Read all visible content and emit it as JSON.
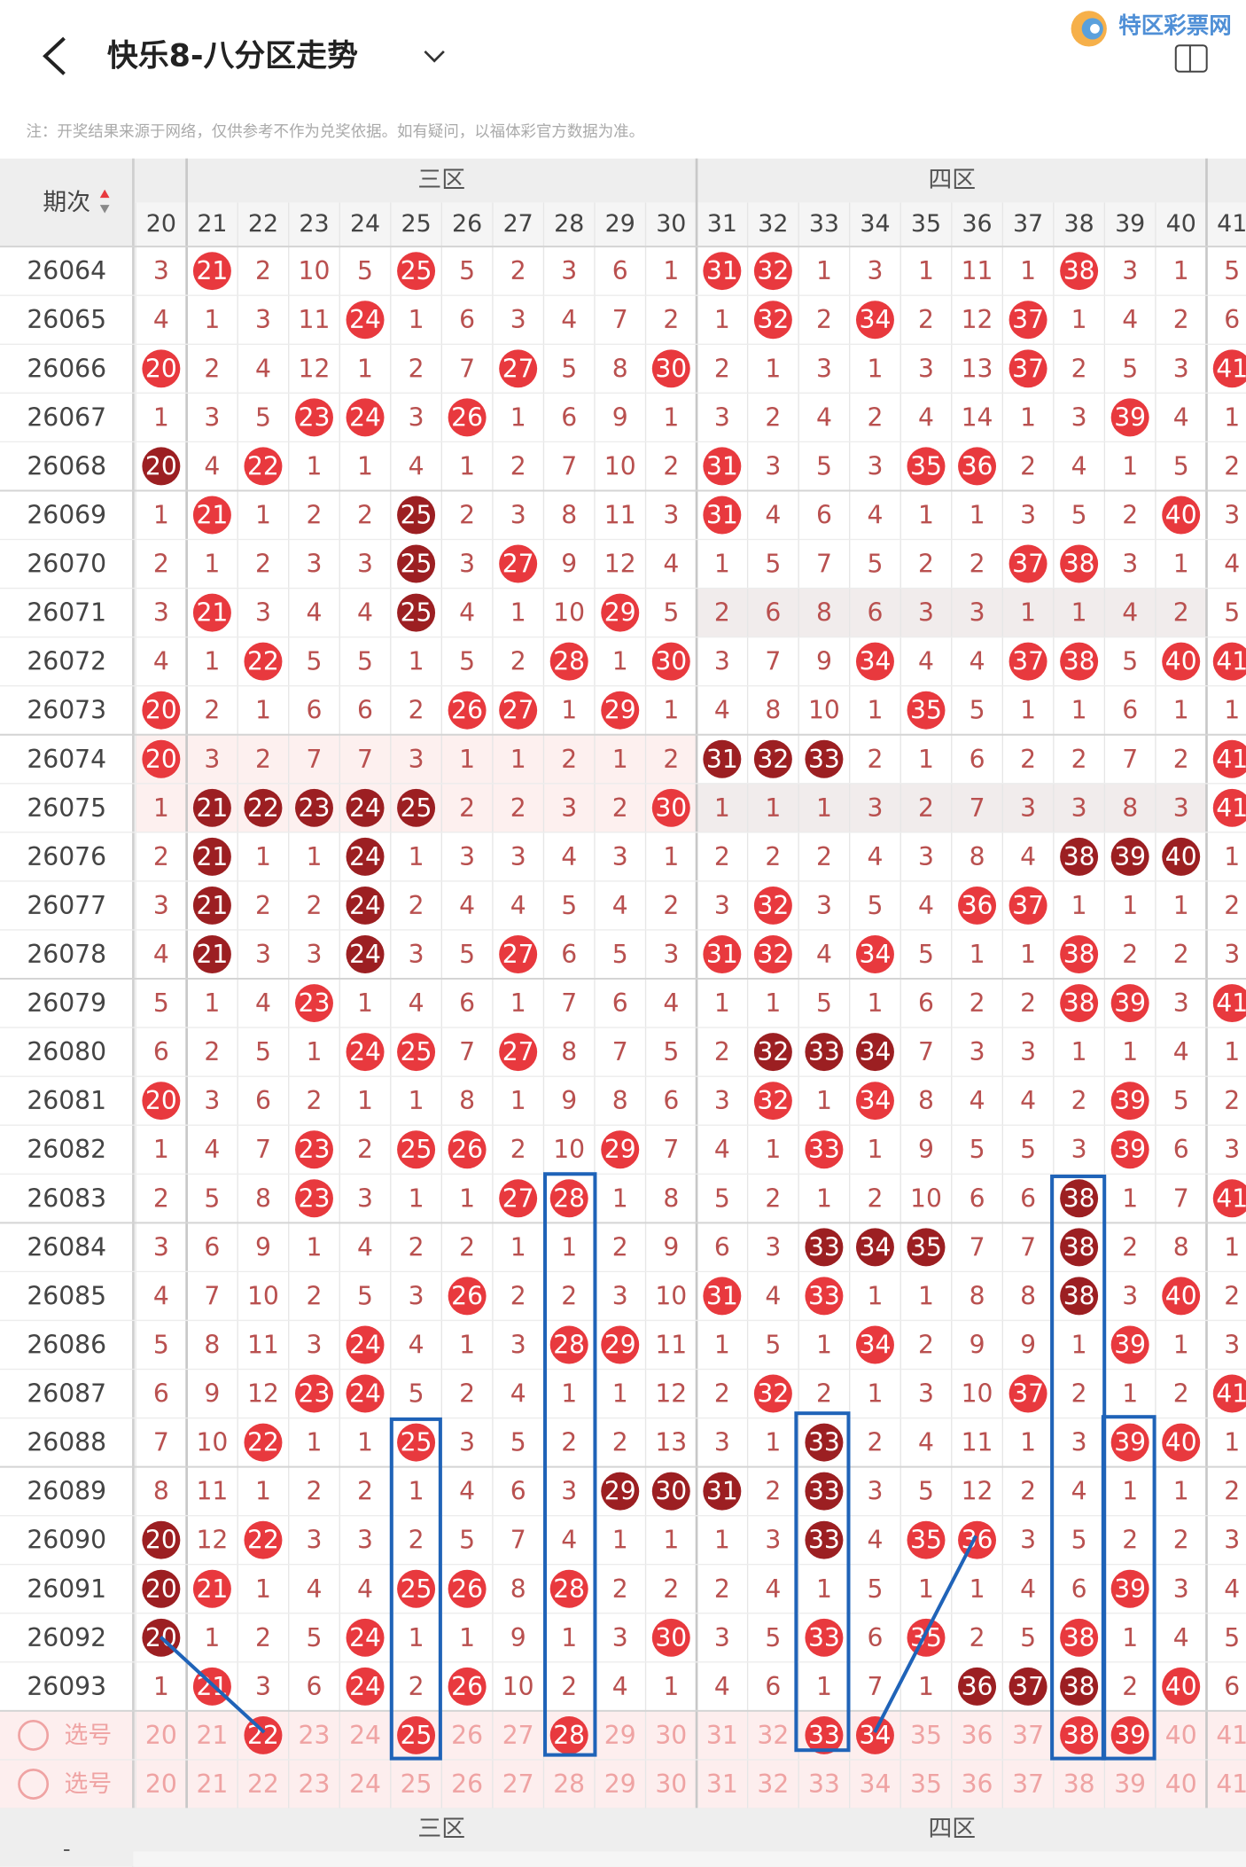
{
  "header": {
    "title": "快乐8-八分区走势",
    "logo": "特区彩票网"
  },
  "notice": "注：开奖结果来源于网络，仅供参考不作为兑奖依据。如有疑问，以福体彩官方数据为准。",
  "colors": {
    "hit": "#e8393e",
    "dark": "#9c1f22",
    "miss": "#b9504f",
    "select_text": "#efa3a3"
  },
  "table": {
    "period_header": "期次",
    "zones": [
      "三区",
      "四区"
    ],
    "columns": [
      20,
      21,
      22,
      23,
      24,
      25,
      26,
      27,
      28,
      29,
      30,
      31,
      32,
      33,
      34,
      35,
      36,
      37,
      38,
      39,
      40,
      41
    ],
    "rows": [
      {
        "period": "26064",
        "cells": [
          3,
          21,
          2,
          10,
          5,
          25,
          5,
          2,
          3,
          6,
          1,
          31,
          32,
          1,
          3,
          1,
          11,
          1,
          38,
          3,
          1,
          5
        ],
        "dark": []
      },
      {
        "period": "26065",
        "cells": [
          4,
          1,
          3,
          11,
          24,
          1,
          6,
          3,
          4,
          7,
          2,
          1,
          32,
          2,
          34,
          2,
          12,
          37,
          1,
          4,
          2,
          6
        ],
        "dark": []
      },
      {
        "period": "26066",
        "cells": [
          20,
          2,
          4,
          12,
          1,
          2,
          7,
          27,
          5,
          8,
          30,
          2,
          1,
          3,
          1,
          3,
          13,
          37,
          2,
          5,
          3,
          41
        ],
        "dark": []
      },
      {
        "period": "26067",
        "cells": [
          1,
          3,
          5,
          23,
          24,
          3,
          26,
          1,
          6,
          9,
          1,
          3,
          2,
          4,
          2,
          4,
          14,
          1,
          3,
          39,
          4,
          1
        ],
        "dark": []
      },
      {
        "period": "26068",
        "cells": [
          20,
          4,
          22,
          1,
          1,
          4,
          1,
          2,
          7,
          10,
          2,
          31,
          3,
          5,
          3,
          35,
          36,
          2,
          4,
          1,
          5,
          2
        ],
        "dark": [
          20
        ]
      },
      {
        "period": "26069",
        "cells": [
          1,
          21,
          1,
          2,
          2,
          25,
          2,
          3,
          8,
          11,
          3,
          31,
          4,
          6,
          4,
          1,
          1,
          3,
          5,
          2,
          40,
          3
        ],
        "dark": [
          25
        ]
      },
      {
        "period": "26070",
        "cells": [
          2,
          1,
          2,
          3,
          3,
          25,
          3,
          27,
          9,
          12,
          4,
          1,
          5,
          7,
          5,
          2,
          2,
          37,
          38,
          3,
          1,
          4
        ],
        "dark": [
          25
        ]
      },
      {
        "period": "26071",
        "cells": [
          3,
          21,
          3,
          4,
          4,
          25,
          4,
          1,
          10,
          29,
          5,
          2,
          6,
          8,
          6,
          3,
          3,
          1,
          1,
          4,
          2,
          5
        ],
        "dark": [
          25
        ]
      },
      {
        "period": "26072",
        "cells": [
          4,
          1,
          22,
          5,
          5,
          1,
          5,
          2,
          28,
          1,
          30,
          3,
          7,
          9,
          34,
          4,
          4,
          37,
          38,
          5,
          40,
          41
        ],
        "dark": []
      },
      {
        "period": "26073",
        "cells": [
          20,
          2,
          1,
          6,
          6,
          2,
          26,
          27,
          1,
          29,
          1,
          4,
          8,
          10,
          1,
          35,
          5,
          1,
          1,
          6,
          1,
          1
        ],
        "dark": []
      },
      {
        "period": "26074",
        "cells": [
          20,
          3,
          2,
          7,
          7,
          3,
          1,
          1,
          2,
          1,
          2,
          31,
          32,
          33,
          2,
          1,
          6,
          2,
          2,
          7,
          2,
          41
        ],
        "dark": [
          31,
          32,
          33
        ]
      },
      {
        "period": "26075",
        "cells": [
          1,
          21,
          22,
          23,
          24,
          25,
          2,
          2,
          3,
          2,
          30,
          1,
          1,
          1,
          3,
          2,
          7,
          3,
          3,
          8,
          3,
          41
        ],
        "dark": [
          21,
          22,
          23,
          24,
          25
        ]
      },
      {
        "period": "26076",
        "cells": [
          2,
          21,
          1,
          1,
          24,
          1,
          3,
          3,
          4,
          3,
          1,
          2,
          2,
          2,
          4,
          3,
          8,
          4,
          38,
          39,
          40,
          1
        ],
        "dark": [
          21,
          24,
          38,
          39,
          40
        ]
      },
      {
        "period": "26077",
        "cells": [
          3,
          21,
          2,
          2,
          24,
          2,
          4,
          4,
          5,
          4,
          2,
          3,
          32,
          3,
          5,
          4,
          36,
          37,
          1,
          1,
          1,
          2
        ],
        "dark": [
          21,
          24
        ]
      },
      {
        "period": "26078",
        "cells": [
          4,
          21,
          3,
          3,
          24,
          3,
          5,
          27,
          6,
          5,
          3,
          31,
          32,
          4,
          34,
          5,
          1,
          1,
          38,
          2,
          2,
          3
        ],
        "dark": [
          21,
          24
        ]
      },
      {
        "period": "26079",
        "cells": [
          5,
          1,
          4,
          23,
          1,
          4,
          6,
          1,
          7,
          6,
          4,
          1,
          1,
          5,
          1,
          6,
          2,
          2,
          38,
          39,
          3,
          41
        ],
        "dark": []
      },
      {
        "period": "26080",
        "cells": [
          6,
          2,
          5,
          1,
          24,
          25,
          7,
          27,
          8,
          7,
          5,
          2,
          32,
          33,
          34,
          7,
          3,
          3,
          1,
          1,
          4,
          1
        ],
        "dark": [
          32,
          33,
          34
        ]
      },
      {
        "period": "26081",
        "cells": [
          20,
          3,
          6,
          2,
          1,
          1,
          8,
          1,
          9,
          8,
          6,
          3,
          32,
          1,
          34,
          8,
          4,
          4,
          2,
          39,
          5,
          2
        ],
        "dark": []
      },
      {
        "period": "26082",
        "cells": [
          1,
          4,
          7,
          23,
          2,
          25,
          26,
          2,
          10,
          29,
          7,
          4,
          1,
          33,
          1,
          9,
          5,
          5,
          3,
          39,
          6,
          3
        ],
        "dark": []
      },
      {
        "period": "26083",
        "cells": [
          2,
          5,
          8,
          23,
          3,
          1,
          1,
          27,
          28,
          1,
          8,
          5,
          2,
          1,
          2,
          10,
          6,
          6,
          38,
          1,
          7,
          41
        ],
        "dark": [
          38
        ]
      },
      {
        "period": "26084",
        "cells": [
          3,
          6,
          9,
          1,
          4,
          2,
          2,
          1,
          1,
          2,
          9,
          6,
          3,
          33,
          34,
          35,
          7,
          7,
          38,
          2,
          8,
          1
        ],
        "dark": [
          33,
          34,
          35,
          38
        ]
      },
      {
        "period": "26085",
        "cells": [
          4,
          7,
          10,
          2,
          5,
          3,
          26,
          2,
          2,
          3,
          10,
          31,
          4,
          33,
          1,
          1,
          8,
          8,
          38,
          3,
          40,
          2
        ],
        "dark": [
          38
        ]
      },
      {
        "period": "26086",
        "cells": [
          5,
          8,
          11,
          3,
          24,
          4,
          1,
          3,
          28,
          29,
          11,
          1,
          5,
          1,
          34,
          2,
          9,
          9,
          1,
          39,
          1,
          3
        ],
        "dark": []
      },
      {
        "period": "26087",
        "cells": [
          6,
          9,
          12,
          23,
          24,
          5,
          2,
          4,
          1,
          1,
          12,
          2,
          32,
          2,
          1,
          3,
          10,
          37,
          2,
          1,
          2,
          41
        ],
        "dark": []
      },
      {
        "period": "26088",
        "cells": [
          7,
          10,
          22,
          1,
          1,
          25,
          3,
          5,
          2,
          2,
          13,
          3,
          1,
          33,
          2,
          4,
          11,
          1,
          3,
          39,
          40,
          1
        ],
        "dark": [
          33
        ]
      },
      {
        "period": "26089",
        "cells": [
          8,
          11,
          1,
          2,
          2,
          1,
          4,
          6,
          3,
          29,
          30,
          31,
          2,
          33,
          3,
          5,
          12,
          2,
          4,
          1,
          1,
          2
        ],
        "dark": [
          29,
          30,
          31,
          33
        ]
      },
      {
        "period": "26090",
        "cells": [
          20,
          12,
          22,
          3,
          3,
          2,
          5,
          7,
          4,
          1,
          1,
          1,
          3,
          33,
          4,
          35,
          36,
          3,
          5,
          2,
          2,
          3
        ],
        "dark": [
          20,
          33
        ]
      },
      {
        "period": "26091",
        "cells": [
          20,
          21,
          1,
          4,
          4,
          25,
          26,
          8,
          28,
          2,
          2,
          2,
          4,
          1,
          5,
          1,
          1,
          4,
          6,
          39,
          3,
          4
        ],
        "dark": [
          20
        ]
      },
      {
        "period": "26092",
        "cells": [
          20,
          1,
          2,
          5,
          24,
          1,
          1,
          9,
          1,
          3,
          30,
          3,
          5,
          33,
          6,
          35,
          2,
          5,
          38,
          1,
          4,
          5
        ],
        "dark": [
          20
        ]
      },
      {
        "period": "26093",
        "cells": [
          1,
          21,
          3,
          6,
          24,
          2,
          26,
          10,
          2,
          4,
          1,
          4,
          6,
          1,
          7,
          1,
          36,
          37,
          38,
          2,
          40,
          6
        ],
        "dark": [
          36,
          37,
          38
        ]
      }
    ],
    "select_rows": [
      {
        "label": "选号",
        "cells": [
          20,
          21,
          22,
          23,
          24,
          25,
          26,
          27,
          28,
          29,
          30,
          31,
          32,
          33,
          34,
          35,
          36,
          37,
          38,
          39,
          40,
          41
        ],
        "selected": [
          22,
          25,
          28,
          33,
          34,
          38,
          39
        ]
      },
      {
        "label": "选号",
        "cells": [
          20,
          21,
          22,
          23,
          24,
          25,
          26,
          27,
          28,
          29,
          30,
          31,
          32,
          33,
          34,
          35,
          36,
          37,
          38,
          39,
          40,
          41
        ],
        "selected": []
      }
    ],
    "footer_zones": [
      "三区",
      "四区"
    ],
    "footer_mark": "-"
  }
}
